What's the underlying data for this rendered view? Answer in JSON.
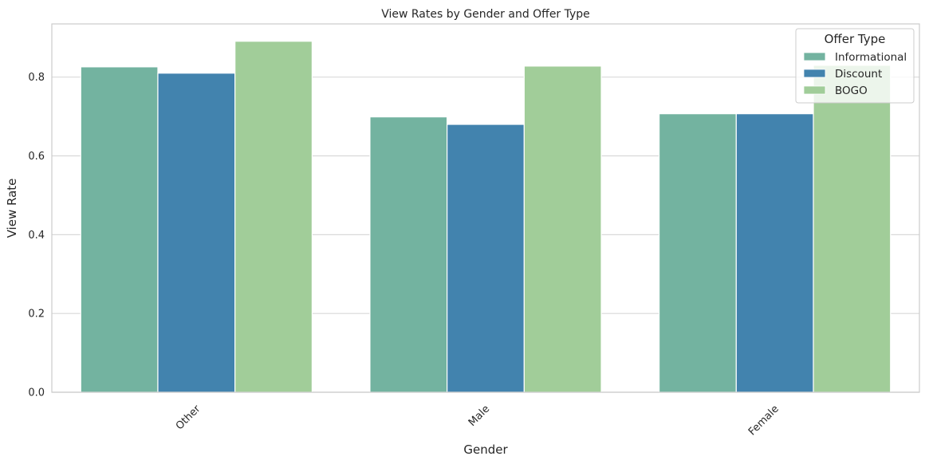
{
  "chart_data": {
    "type": "bar",
    "title": "View Rates by Gender and Offer Type",
    "xlabel": "Gender",
    "ylabel": "View Rate",
    "categories": [
      "Other",
      "Male",
      "Female"
    ],
    "series": [
      {
        "name": "Informational",
        "color": "#73b3a0",
        "values": [
          0.826,
          0.699,
          0.707
        ]
      },
      {
        "name": "Discount",
        "color": "#4283ae",
        "values": [
          0.81,
          0.68,
          0.707
        ]
      },
      {
        "name": "BOGO",
        "color": "#a1cd99",
        "values": [
          0.891,
          0.828,
          0.83
        ]
      }
    ],
    "ylim": [
      0,
      0.935
    ],
    "yticks": [
      0.0,
      0.2,
      0.4,
      0.6,
      0.8
    ],
    "ytick_labels": [
      "0.0",
      "0.2",
      "0.4",
      "0.6",
      "0.8"
    ],
    "grid": "y",
    "legend": {
      "title": "Offer Type",
      "placement": "top-right"
    }
  }
}
